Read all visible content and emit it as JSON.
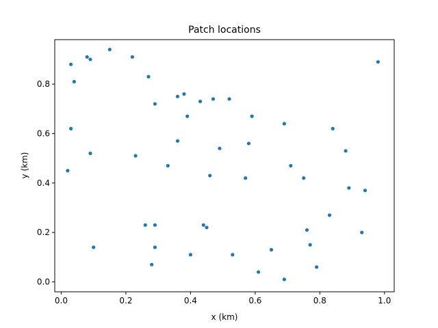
{
  "chart_data": {
    "type": "scatter",
    "title": "Patch locations",
    "xlabel": "x (km)",
    "ylabel": "y (km)",
    "xlim": [
      -0.02,
      1.03
    ],
    "ylim": [
      -0.04,
      0.98
    ],
    "xticks": [
      0.0,
      0.2,
      0.4,
      0.6,
      0.8,
      1.0
    ],
    "xtick_labels": [
      "0.0",
      "0.2",
      "0.4",
      "0.6",
      "0.8",
      "1.0"
    ],
    "yticks": [
      0.0,
      0.2,
      0.4,
      0.6,
      0.8
    ],
    "ytick_labels": [
      "0.0",
      "0.2",
      "0.4",
      "0.6",
      "0.8"
    ],
    "grid": false,
    "marker_color": "#1f77b4",
    "series": [
      {
        "points": [
          [
            0.03,
            0.88
          ],
          [
            0.04,
            0.81
          ],
          [
            0.08,
            0.91
          ],
          [
            0.09,
            0.9
          ],
          [
            0.15,
            0.94
          ],
          [
            0.22,
            0.91
          ],
          [
            0.27,
            0.83
          ],
          [
            0.29,
            0.72
          ],
          [
            0.36,
            0.75
          ],
          [
            0.38,
            0.76
          ],
          [
            0.39,
            0.67
          ],
          [
            0.43,
            0.73
          ],
          [
            0.47,
            0.74
          ],
          [
            0.52,
            0.74
          ],
          [
            0.59,
            0.67
          ],
          [
            0.69,
            0.64
          ],
          [
            0.84,
            0.62
          ],
          [
            0.98,
            0.89
          ],
          [
            0.03,
            0.62
          ],
          [
            0.36,
            0.57
          ],
          [
            0.49,
            0.54
          ],
          [
            0.58,
            0.56
          ],
          [
            0.88,
            0.53
          ],
          [
            0.02,
            0.45
          ],
          [
            0.09,
            0.52
          ],
          [
            0.23,
            0.51
          ],
          [
            0.33,
            0.47
          ],
          [
            0.46,
            0.43
          ],
          [
            0.57,
            0.42
          ],
          [
            0.71,
            0.47
          ],
          [
            0.75,
            0.42
          ],
          [
            0.89,
            0.38
          ],
          [
            0.94,
            0.37
          ],
          [
            0.26,
            0.23
          ],
          [
            0.29,
            0.23
          ],
          [
            0.44,
            0.23
          ],
          [
            0.45,
            0.22
          ],
          [
            0.76,
            0.21
          ],
          [
            0.83,
            0.27
          ],
          [
            0.1,
            0.14
          ],
          [
            0.29,
            0.14
          ],
          [
            0.77,
            0.15
          ],
          [
            0.93,
            0.2
          ],
          [
            0.28,
            0.07
          ],
          [
            0.4,
            0.11
          ],
          [
            0.53,
            0.11
          ],
          [
            0.65,
            0.13
          ],
          [
            0.61,
            0.04
          ],
          [
            0.69,
            0.01
          ],
          [
            0.79,
            0.06
          ]
        ]
      }
    ]
  }
}
